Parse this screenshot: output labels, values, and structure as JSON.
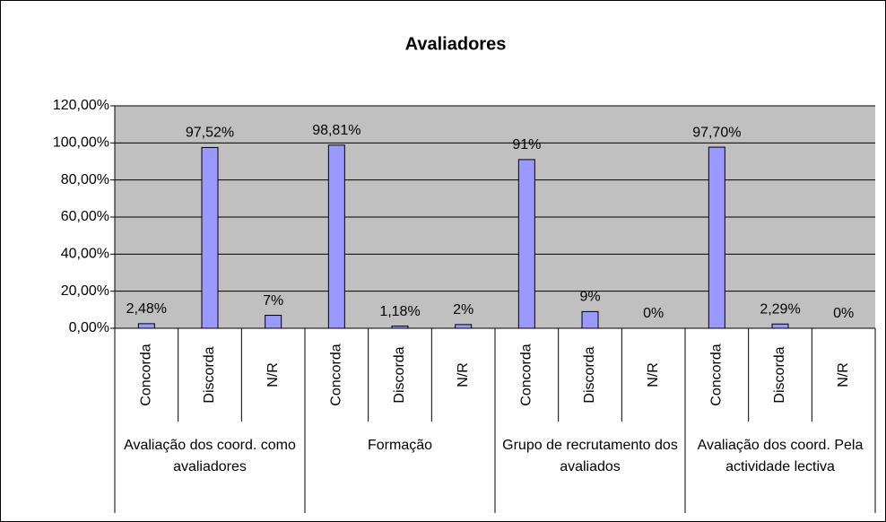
{
  "chart_data": {
    "type": "bar",
    "title": "Avaliadores",
    "categories": [
      "Concorda",
      "Discorda",
      "N/R",
      "Concorda",
      "Discorda",
      "N/R",
      "Concorda",
      "Discorda",
      "N/R",
      "Concorda",
      "Discorda",
      "N/R"
    ],
    "groups": [
      "Avaliação dos coord. como avaliadores",
      "Formação",
      "Grupo de recrutamento dos avaliados",
      "Avaliação dos coord. Pela actividade lectiva"
    ],
    "values": [
      2.48,
      97.52,
      7,
      98.81,
      1.18,
      2,
      91,
      9,
      0,
      97.7,
      2.29,
      0
    ],
    "value_labels": [
      "2,48%",
      "97,52%",
      "7%",
      "98,81%",
      "1,18%",
      "2%",
      "91%",
      "9%",
      "0%",
      "97,70%",
      "2,29%",
      "0%"
    ],
    "color": "#9999ff",
    "ylim": [
      0,
      120
    ],
    "yticks": [
      {
        "value": 0,
        "label": "0,00%"
      },
      {
        "value": 20,
        "label": "20,00%"
      },
      {
        "value": 40,
        "label": "40,00%"
      },
      {
        "value": 60,
        "label": "60,00%"
      },
      {
        "value": 80,
        "label": "80,00%"
      },
      {
        "value": 100,
        "label": "100,00%"
      },
      {
        "value": 120,
        "label": "120,00%"
      }
    ],
    "grid": true
  }
}
